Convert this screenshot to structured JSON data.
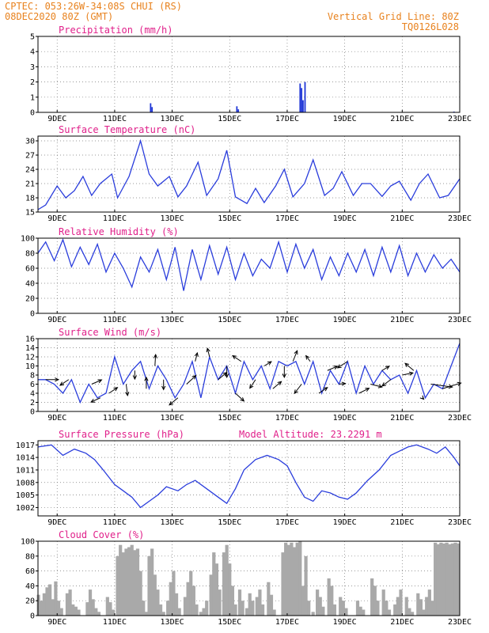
{
  "header": {
    "line1_left": "CPTEC:   053:26W-34:08S   CHUI (RS)",
    "line2_left": "08DEC2020 80Z (GMT)",
    "line1_right": "Vertical Grid Line: 80Z",
    "line2_right": "TQ0126L028"
  },
  "colors": {
    "line": "#2a3ddc",
    "bar": "#1f36d6",
    "cloud": "#a9a9a9",
    "vector": "#000000",
    "title": "#e0208a",
    "header": "#e8821e"
  },
  "time_axis": {
    "start_day": 8.333,
    "end_day": 23.0,
    "tick_days": [
      9,
      11,
      13,
      15,
      17,
      19,
      21,
      23
    ],
    "tick_labels": [
      "9DEC",
      "11DEC",
      "13DEC",
      "15DEC",
      "17DEC",
      "19DEC",
      "21DEC",
      "23DEC"
    ]
  },
  "chart_data": [
    {
      "type": "bar",
      "id": "precip",
      "title": "Precipitation (mm/h)",
      "ylim": [
        0,
        5
      ],
      "yticks": [
        0,
        1,
        2,
        3,
        4,
        5
      ],
      "x": [
        12.25,
        12.3,
        15.25,
        15.3,
        17.45,
        17.5,
        17.55,
        17.62,
        22.8
      ],
      "values": [
        0.6,
        0.35,
        0.4,
        0.2,
        1.9,
        1.6,
        0.8,
        2.0,
        0.05
      ]
    },
    {
      "type": "line",
      "id": "temp",
      "title": "Surface Temperature (nC)",
      "ylim": [
        15,
        31
      ],
      "yticks": [
        15,
        18,
        21,
        24,
        27,
        30
      ],
      "x": [
        8.33,
        8.6,
        9.0,
        9.3,
        9.6,
        9.9,
        10.2,
        10.5,
        10.9,
        11.1,
        11.5,
        11.9,
        12.2,
        12.5,
        12.9,
        13.2,
        13.5,
        13.9,
        14.2,
        14.6,
        14.9,
        15.2,
        15.6,
        15.9,
        16.2,
        16.6,
        16.9,
        17.2,
        17.6,
        17.9,
        18.3,
        18.6,
        18.9,
        19.3,
        19.6,
        19.9,
        20.3,
        20.6,
        20.9,
        21.3,
        21.6,
        21.9,
        22.3,
        22.6,
        23.0
      ],
      "values": [
        15.5,
        16.5,
        20.5,
        18.0,
        19.5,
        22.5,
        18.5,
        21.0,
        23.0,
        18.0,
        22.5,
        30.0,
        23.0,
        20.5,
        22.5,
        18.2,
        20.5,
        25.5,
        18.5,
        22.0,
        28.0,
        18.2,
        16.8,
        20.0,
        17.0,
        20.5,
        24.0,
        18.2,
        21.0,
        26.0,
        18.5,
        20.0,
        23.5,
        18.5,
        21.0,
        21.0,
        18.3,
        20.5,
        21.5,
        17.5,
        21.0,
        23.0,
        18.0,
        18.5,
        22.0
      ]
    },
    {
      "type": "line",
      "id": "rh",
      "title": "Relative Humidity (%)",
      "ylim": [
        0,
        100
      ],
      "yticks": [
        0,
        20,
        40,
        60,
        80,
        100
      ],
      "x": [
        8.33,
        8.6,
        8.9,
        9.2,
        9.5,
        9.8,
        10.1,
        10.4,
        10.7,
        11.0,
        11.3,
        11.6,
        11.9,
        12.2,
        12.5,
        12.8,
        13.1,
        13.4,
        13.7,
        14.0,
        14.3,
        14.6,
        14.9,
        15.2,
        15.5,
        15.8,
        16.1,
        16.4,
        16.7,
        17.0,
        17.3,
        17.6,
        17.9,
        18.2,
        18.5,
        18.8,
        19.1,
        19.4,
        19.7,
        20.0,
        20.3,
        20.6,
        20.9,
        21.2,
        21.5,
        21.8,
        22.1,
        22.4,
        22.7,
        23.0
      ],
      "values": [
        80,
        95,
        70,
        98,
        62,
        88,
        65,
        92,
        55,
        80,
        60,
        35,
        75,
        55,
        85,
        45,
        88,
        30,
        85,
        45,
        90,
        52,
        88,
        45,
        80,
        50,
        72,
        60,
        95,
        55,
        92,
        60,
        85,
        45,
        75,
        50,
        80,
        55,
        85,
        50,
        88,
        55,
        90,
        50,
        80,
        55,
        78,
        60,
        72,
        55
      ]
    },
    {
      "type": "line",
      "id": "wind",
      "title": "Surface Wind (m/s)",
      "ylim": [
        0,
        16
      ],
      "yticks": [
        0,
        2,
        4,
        6,
        8,
        10,
        12,
        14,
        16
      ],
      "x": [
        8.33,
        8.6,
        8.9,
        9.2,
        9.5,
        9.8,
        10.1,
        10.4,
        10.7,
        11.0,
        11.3,
        11.6,
        11.9,
        12.2,
        12.5,
        12.8,
        13.1,
        13.4,
        13.7,
        14.0,
        14.3,
        14.6,
        14.9,
        15.2,
        15.5,
        15.8,
        16.1,
        16.4,
        16.7,
        17.0,
        17.3,
        17.6,
        17.9,
        18.2,
        18.5,
        18.8,
        19.1,
        19.4,
        19.7,
        20.0,
        20.3,
        20.6,
        20.9,
        21.2,
        21.5,
        21.8,
        22.1,
        22.4,
        22.7,
        23.0
      ],
      "values": [
        7,
        7,
        6,
        4,
        7,
        2,
        6,
        3,
        4,
        12,
        6,
        9,
        11,
        5,
        10,
        7,
        3,
        6,
        11,
        3,
        12,
        7,
        10,
        4,
        11,
        7,
        10,
        5,
        11,
        10,
        11,
        6,
        11,
        4,
        9,
        6,
        11,
        4,
        10,
        6,
        9,
        7,
        8,
        4,
        9,
        3,
        6,
        5,
        10,
        15
      ],
      "vectors": {
        "x": [
          8.6,
          9.4,
          10.2,
          10.5,
          10.8,
          11.4,
          11.7,
          12.1,
          12.4,
          12.7,
          13.2,
          13.5,
          13.8,
          14.3,
          14.6,
          14.9,
          15.2,
          15.4,
          15.9,
          16.2,
          16.5,
          16.9,
          17.2,
          17.5,
          17.8,
          18.1,
          18.4,
          18.8,
          19.1,
          19.5,
          19.9,
          20.3,
          20.6,
          21.0,
          21.4,
          21.7,
          22.0,
          22.4
        ],
        "u": [
          1.8,
          -1.2,
          1.4,
          -1.3,
          1.2,
          0.2,
          0,
          0,
          0.1,
          0,
          -1.2,
          1.3,
          0.3,
          -0.3,
          1.2,
          0,
          1.2,
          -1.2,
          -0.8,
          1.0,
          1.2,
          0,
          0.6,
          -1.0,
          -0.6,
          1.2,
          1.4,
          0.9,
          -1.4,
          1.4,
          1.6,
          1.0,
          -1.2,
          1.5,
          -1.2,
          0.2,
          3.0,
          2.6
        ],
        "v": [
          0,
          -0.8,
          0.6,
          -0.6,
          0.8,
          -1.6,
          -1.2,
          1.6,
          1.6,
          -1.4,
          -1.0,
          1.2,
          1.2,
          1.2,
          1.0,
          -1.6,
          -1.1,
          0.8,
          -1.2,
          0.6,
          1.0,
          -1.6,
          1.5,
          -1.3,
          0.8,
          0.8,
          0.6,
          0.1,
          -0.9,
          0.7,
          -0.4,
          0.6,
          -0.9,
          0.3,
          1.0,
          -0.2,
          -0.4,
          0.8
        ]
      }
    },
    {
      "type": "line",
      "id": "press",
      "title": "Surface Pressure (hPa)",
      "annotation": "Model Altitude: 23.2291 m",
      "ylim": [
        1000,
        1018
      ],
      "yticks": [
        1002,
        1005,
        1008,
        1011,
        1014,
        1017
      ],
      "x": [
        8.33,
        8.8,
        9.2,
        9.6,
        10.0,
        10.3,
        10.6,
        11.0,
        11.3,
        11.6,
        11.9,
        12.2,
        12.5,
        12.8,
        13.2,
        13.5,
        13.8,
        14.2,
        14.6,
        14.9,
        15.2,
        15.5,
        15.9,
        16.3,
        16.7,
        17.0,
        17.3,
        17.6,
        17.9,
        18.2,
        18.5,
        18.8,
        19.1,
        19.4,
        19.8,
        20.2,
        20.6,
        20.9,
        21.2,
        21.5,
        21.9,
        22.2,
        22.5,
        22.8,
        23.0
      ],
      "values": [
        1016.5,
        1017.0,
        1014.5,
        1016.0,
        1015.0,
        1013.5,
        1011.0,
        1007.5,
        1006.0,
        1004.5,
        1002.0,
        1003.5,
        1005.0,
        1007.0,
        1006.0,
        1007.5,
        1008.5,
        1006.5,
        1004.5,
        1003.0,
        1006.5,
        1011.0,
        1013.5,
        1014.5,
        1013.5,
        1012.0,
        1008.0,
        1004.5,
        1003.5,
        1006.0,
        1005.5,
        1004.5,
        1004.0,
        1005.5,
        1008.5,
        1011.0,
        1014.5,
        1015.5,
        1016.5,
        1017.0,
        1016.0,
        1015.0,
        1016.5,
        1014.0,
        1012.0
      ]
    },
    {
      "type": "bar",
      "id": "cloud",
      "title": "Cloud Cover (%)",
      "ylim": [
        0,
        100
      ],
      "yticks": [
        0,
        20,
        40,
        60,
        80,
        100
      ],
      "x": [
        8.35,
        8.45,
        8.55,
        8.65,
        8.75,
        8.85,
        8.95,
        9.05,
        9.15,
        9.35,
        9.45,
        9.55,
        9.65,
        9.75,
        10.05,
        10.15,
        10.25,
        10.35,
        10.45,
        10.75,
        10.85,
        10.95,
        11.1,
        11.2,
        11.3,
        11.4,
        11.5,
        11.6,
        11.7,
        11.8,
        11.9,
        12.0,
        12.1,
        12.2,
        12.3,
        12.4,
        12.5,
        12.6,
        12.7,
        12.85,
        12.95,
        13.05,
        13.15,
        13.25,
        13.45,
        13.55,
        13.65,
        13.75,
        13.85,
        14.0,
        14.1,
        14.2,
        14.35,
        14.45,
        14.55,
        14.65,
        14.8,
        14.9,
        15.0,
        15.1,
        15.2,
        15.35,
        15.45,
        15.6,
        15.7,
        15.8,
        15.95,
        16.05,
        16.15,
        16.35,
        16.45,
        16.55,
        16.85,
        16.95,
        17.05,
        17.15,
        17.25,
        17.35,
        17.45,
        17.55,
        17.65,
        17.75,
        17.9,
        18.05,
        18.15,
        18.25,
        18.45,
        18.55,
        18.65,
        18.85,
        18.95,
        19.05,
        19.45,
        19.55,
        19.65,
        19.95,
        20.05,
        20.15,
        20.35,
        20.45,
        20.55,
        20.75,
        20.85,
        20.95,
        21.15,
        21.25,
        21.35,
        21.55,
        21.65,
        21.75,
        21.85,
        21.95,
        22.05,
        22.15,
        22.25,
        22.35,
        22.45,
        22.55,
        22.65,
        22.75,
        22.85,
        22.95
      ],
      "values": [
        28,
        20,
        30,
        38,
        42,
        22,
        46,
        20,
        10,
        30,
        35,
        15,
        12,
        8,
        18,
        35,
        22,
        10,
        5,
        25,
        18,
        8,
        80,
        95,
        85,
        90,
        92,
        95,
        88,
        90,
        60,
        20,
        5,
        80,
        90,
        55,
        35,
        15,
        5,
        20,
        45,
        60,
        30,
        10,
        25,
        45,
        60,
        40,
        15,
        5,
        10,
        20,
        55,
        85,
        70,
        35,
        85,
        95,
        70,
        40,
        15,
        35,
        20,
        10,
        30,
        20,
        25,
        35,
        15,
        45,
        28,
        8,
        85,
        98,
        95,
        98,
        92,
        98,
        100,
        40,
        80,
        20,
        5,
        35,
        25,
        12,
        50,
        40,
        15,
        25,
        20,
        10,
        20,
        12,
        8,
        50,
        40,
        20,
        35,
        20,
        8,
        15,
        25,
        35,
        25,
        10,
        5,
        30,
        22,
        8,
        25,
        35,
        20,
        98,
        96,
        98,
        97,
        98,
        96,
        97,
        98,
        97
      ]
    }
  ]
}
